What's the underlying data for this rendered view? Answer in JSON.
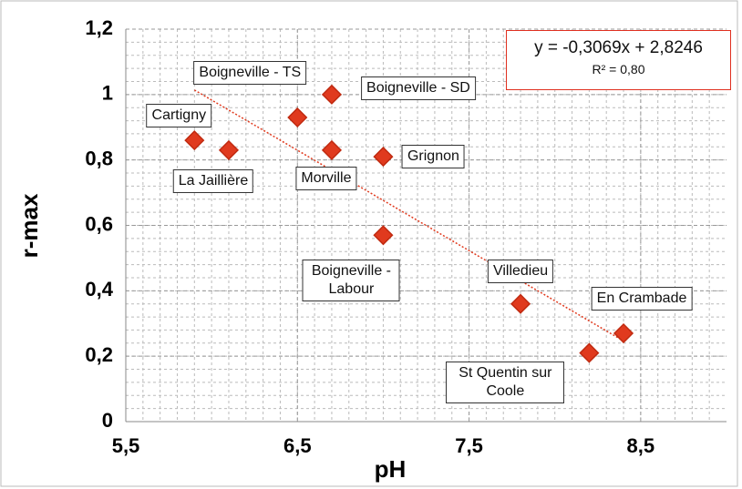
{
  "chart_data": {
    "type": "scatter",
    "x_label": "pH",
    "y_label": "r-max",
    "x": [
      5.9,
      6.1,
      6.5,
      6.7,
      6.7,
      7.0,
      7.0,
      7.8,
      8.2,
      8.4
    ],
    "series": [
      {
        "name": "r-max",
        "color": "#e03a1e",
        "values": [
          0.86,
          0.83,
          0.93,
          1.0,
          0.83,
          0.81,
          0.57,
          0.36,
          0.21,
          0.27
        ]
      }
    ],
    "point_labels": [
      "Cartigny",
      "La Jaillière",
      "Boigneville - TS",
      "Boigneville - SD",
      "Morville",
      "Grignon",
      "Boigneville - Labour",
      "Villedieu",
      "St Quentin sur Coole",
      "En Crambade"
    ],
    "xlim": [
      5.5,
      9.0
    ],
    "xticks": [
      {
        "value": 5.5,
        "label": "5,5"
      },
      {
        "value": 6.5,
        "label": "6,5"
      },
      {
        "value": 7.5,
        "label": "7,5"
      },
      {
        "value": 8.5,
        "label": "8,5"
      }
    ],
    "ylim": [
      0,
      1.2
    ],
    "yticks": [
      0,
      {
        "value": 0.2,
        "label": "0,2"
      },
      {
        "value": 0.4,
        "label": "0,4"
      },
      {
        "value": 0.6,
        "label": "0,6"
      },
      {
        "value": 0.8,
        "label": "0,8"
      },
      1,
      {
        "value": 1.2,
        "label": "1,2"
      }
    ],
    "grid": true,
    "trendline": {
      "slope": -0.3069,
      "intercept": 2.8246,
      "color": "#e03a1e",
      "label": "y = -0,3069x + 2,8246",
      "r2_label": "R² = 0,80"
    }
  }
}
